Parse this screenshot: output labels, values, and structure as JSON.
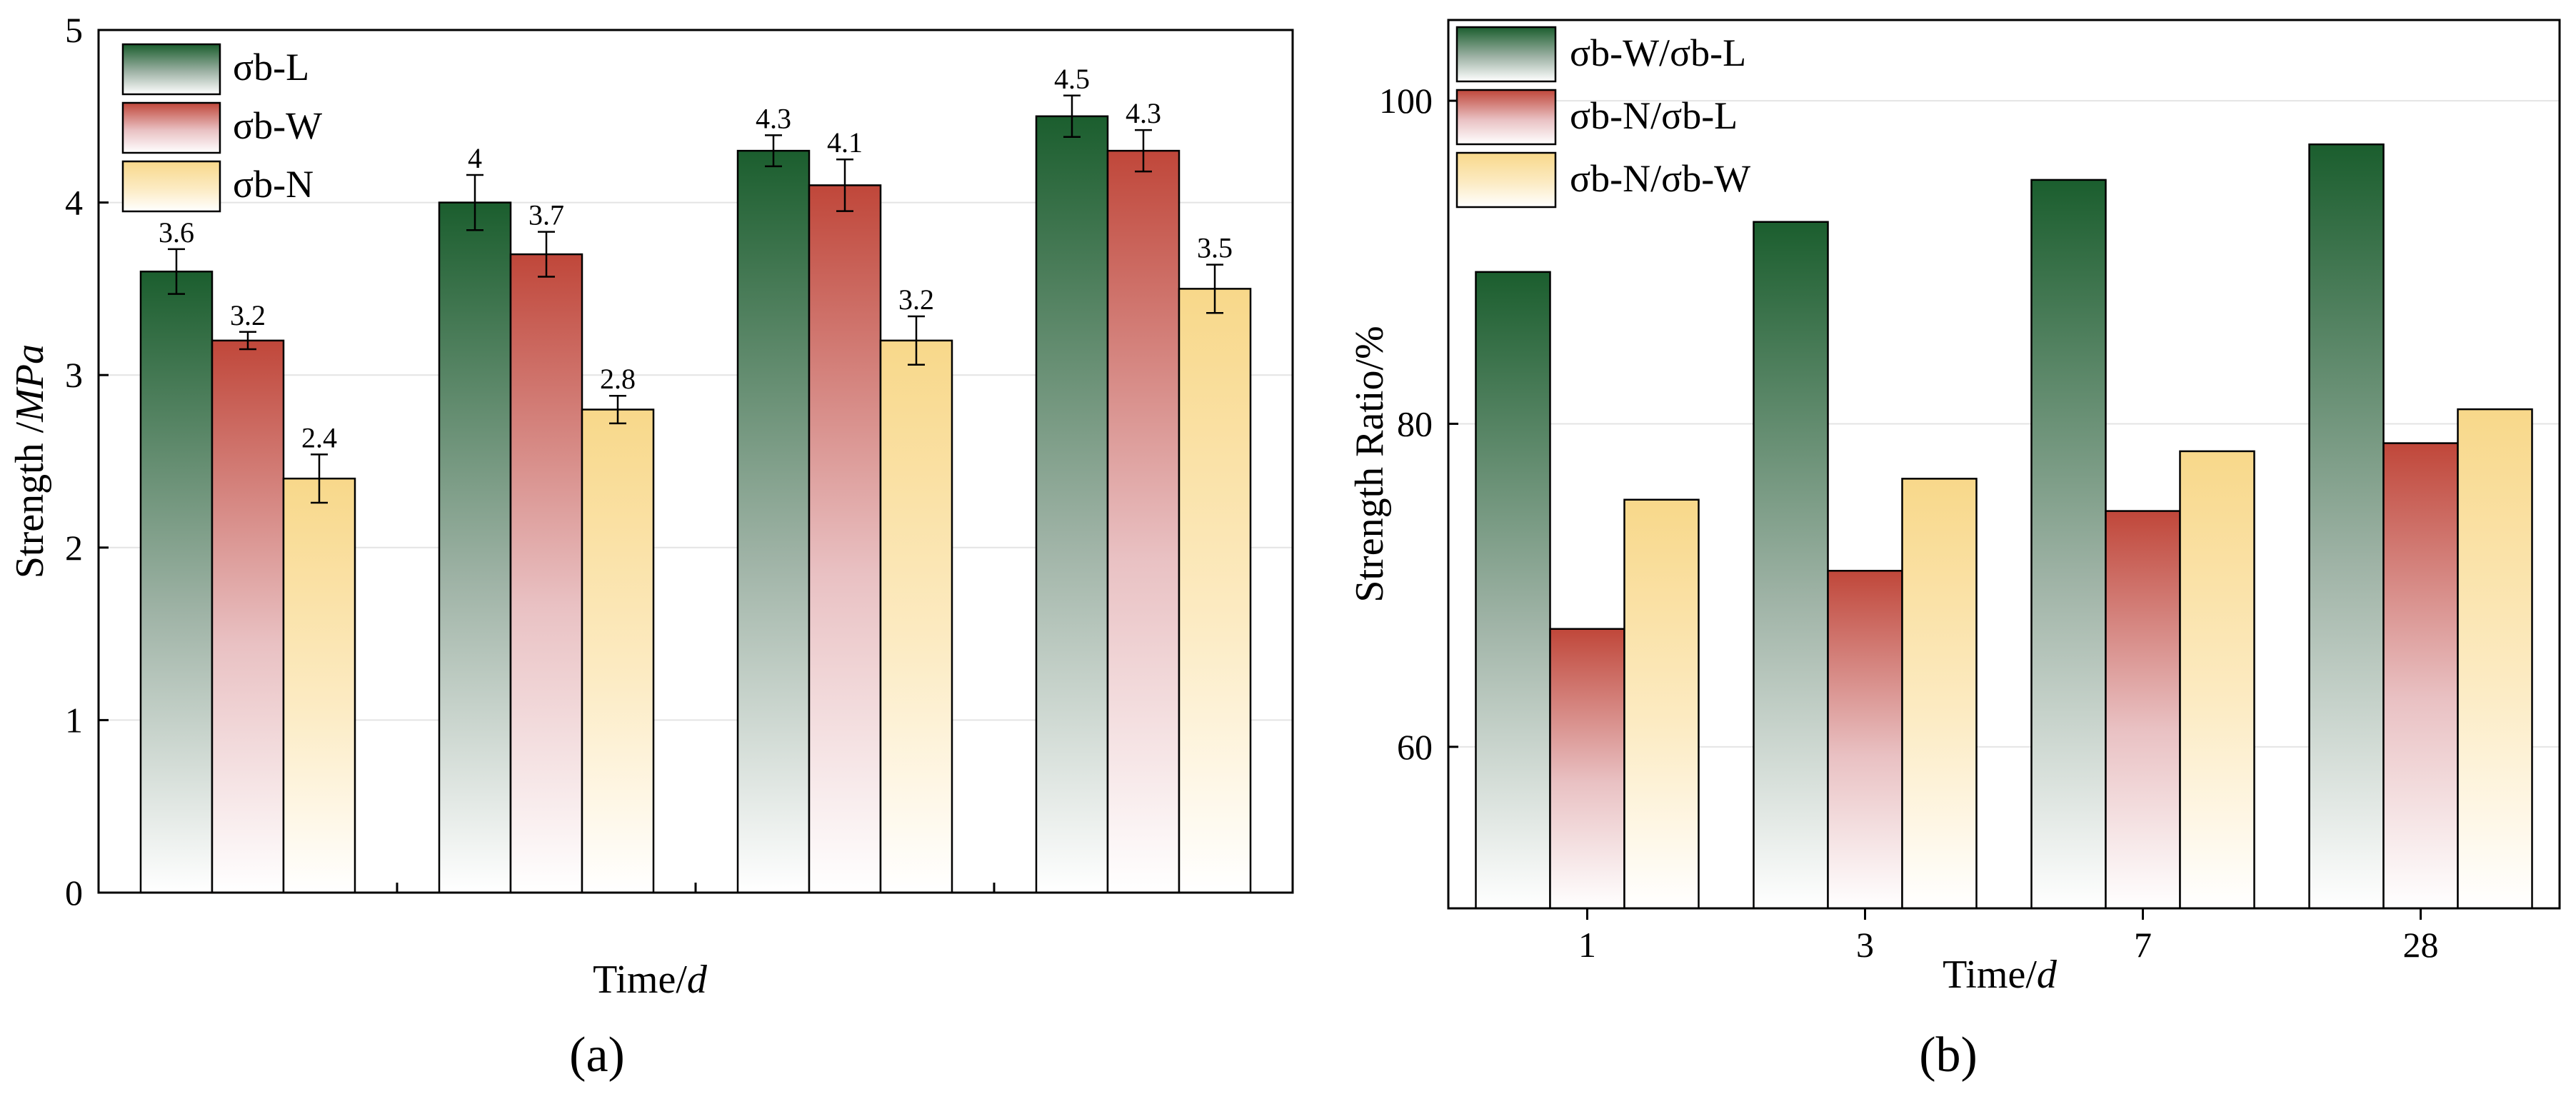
{
  "panels": [
    {
      "label": "(a)"
    },
    {
      "label": "(b)"
    }
  ],
  "chart_data": [
    {
      "type": "bar",
      "title": "",
      "xlabel_plain": "Time/",
      "xlabel_italic": "d",
      "ylabel_plain": "Strength /",
      "ylabel_italic": "MPa",
      "ylim": [
        0,
        5
      ],
      "yticks": [
        "0",
        "1",
        "2",
        "3",
        "4",
        "5"
      ],
      "ytick_values": [
        0,
        1,
        2,
        3,
        4,
        5
      ],
      "grid": true,
      "legend_position": "top-left",
      "category_tick_labels_visible": false,
      "series": [
        {
          "name": "σb-L",
          "values": [
            3.6,
            4.0,
            4.3,
            4.5
          ],
          "labels": [
            "3.6",
            "4",
            "4.3",
            "4.5"
          ],
          "errors": [
            0.13,
            0.16,
            0.09,
            0.12
          ],
          "color": "#1b5e2e"
        },
        {
          "name": "σb-W",
          "values": [
            3.2,
            3.7,
            4.1,
            4.3
          ],
          "labels": [
            "3.2",
            "3.7",
            "4.1",
            "4.3"
          ],
          "errors": [
            0.05,
            0.13,
            0.15,
            0.12
          ],
          "color": "#c0473a"
        },
        {
          "name": "σb-N",
          "values": [
            2.4,
            2.8,
            3.2,
            3.5
          ],
          "labels": [
            "2.4",
            "2.8",
            "3.2",
            "3.5"
          ],
          "errors": [
            0.14,
            0.08,
            0.14,
            0.14
          ],
          "color": "#f8d88a"
        }
      ]
    },
    {
      "type": "bar",
      "title": "",
      "xlabel_plain": "Time/",
      "xlabel_italic": "d",
      "ylabel": "Strength Ratio/%",
      "ylim": [
        50,
        105
      ],
      "yticks": [
        "60",
        "80",
        "100"
      ],
      "ytick_values": [
        60,
        80,
        100
      ],
      "grid": true,
      "legend_position": "top-left",
      "categories": [
        "1",
        "3",
        "7",
        "28"
      ],
      "series": [
        {
          "name": "σb-W/σb-L",
          "values": [
            89.4,
            92.5,
            95.1,
            97.3
          ],
          "color": "#1b5e2e"
        },
        {
          "name": "σb-N/σb-L",
          "values": [
            67.3,
            70.9,
            74.6,
            78.8
          ],
          "color": "#c0473a"
        },
        {
          "name": "σb-N/σb-W",
          "values": [
            75.3,
            76.6,
            78.3,
            80.9
          ],
          "color": "#f8d88a"
        }
      ]
    }
  ]
}
